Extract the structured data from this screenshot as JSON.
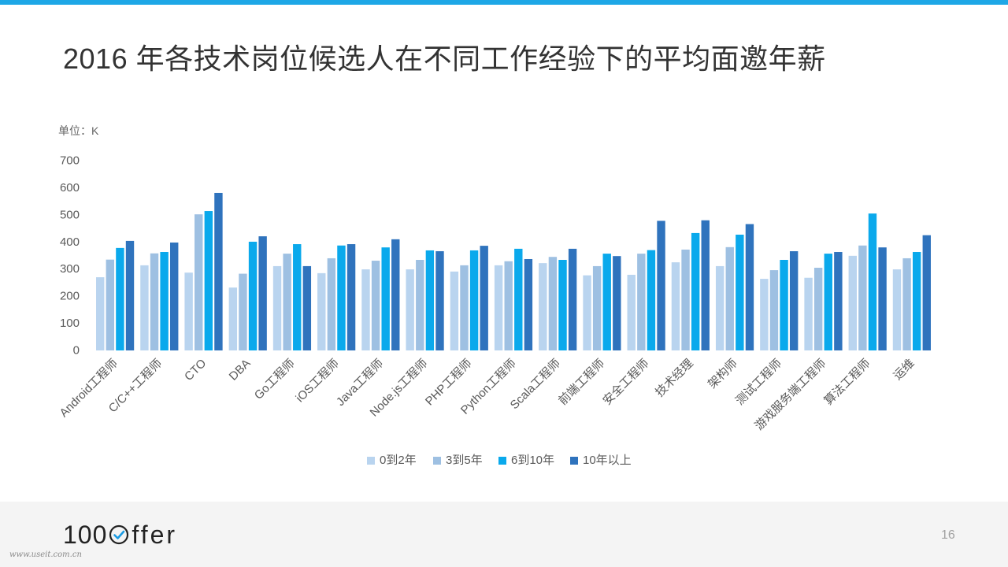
{
  "theme": {
    "accent": "#1ea7e6",
    "footer_bg": "#f4f4f4",
    "logo_check": "#1b9be3"
  },
  "chart_data": {
    "type": "bar",
    "title": "2016 年各技术岗位候选人在不同工作经验下的平均面邀年薪",
    "ylabel": "单位：K",
    "ylim": [
      0,
      700
    ],
    "yticks": [
      0,
      100,
      200,
      300,
      400,
      500,
      600,
      700
    ],
    "grid": false,
    "legend_position": "bottom",
    "categories": [
      "Android工程师",
      "C/C++工程师",
      "CTO",
      "DBA",
      "Go工程师",
      "iOS工程师",
      "Java工程师",
      "Node.js工程师",
      "PHP工程师",
      "Python工程师",
      "Scala工程师",
      "前端工程师",
      "安全工程师",
      "技术经理",
      "架构师",
      "测试工程师",
      "游戏服务端工程师",
      "算法工程师",
      "运维"
    ],
    "series": [
      {
        "name": "0到2年",
        "color": "#b9d4ef",
        "values": [
          270,
          314,
          287,
          232,
          311,
          285,
          299,
          299,
          291,
          314,
          322,
          277,
          279,
          325,
          311,
          264,
          268,
          349,
          299
        ]
      },
      {
        "name": "3到5年",
        "color": "#9ec0e2",
        "values": [
          335,
          358,
          502,
          283,
          357,
          340,
          331,
          334,
          314,
          329,
          345,
          311,
          357,
          372,
          381,
          296,
          305,
          387,
          340
        ]
      },
      {
        "name": "6到10年",
        "color": "#0aa9ec",
        "values": [
          378,
          363,
          514,
          401,
          392,
          387,
          380,
          369,
          369,
          375,
          334,
          357,
          370,
          433,
          427,
          334,
          357,
          505,
          363
        ]
      },
      {
        "name": "10年以上",
        "color": "#2f73bd",
        "values": [
          404,
          398,
          581,
          421,
          311,
          392,
          410,
          366,
          386,
          337,
          375,
          348,
          478,
          480,
          466,
          366,
          363,
          380,
          425
        ]
      }
    ]
  },
  "footer": {
    "logo_prefix": "100",
    "logo_suffix": "ffer",
    "page_number": "16",
    "watermark": "www.useit.com.cn"
  }
}
